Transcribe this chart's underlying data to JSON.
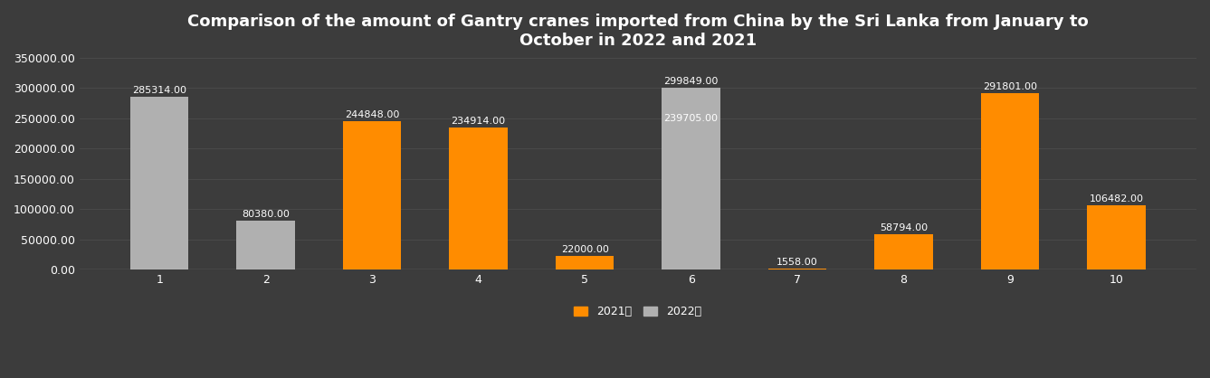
{
  "title": "Comparison of the amount of Gantry cranes imported from China by the Sri Lanka from January to\nOctober in 2022 and 2021",
  "categories": [
    "1",
    "2",
    "3",
    "4",
    "5",
    "6",
    "7",
    "8",
    "9",
    "10"
  ],
  "values_2021": [
    0,
    0,
    244848,
    234914,
    22000,
    239705,
    1558,
    58794,
    291801,
    106482
  ],
  "values_2022": [
    285314,
    80380,
    0,
    0,
    0,
    299849,
    0,
    0,
    0,
    0
  ],
  "labels_2021": [
    "",
    "",
    "244848.00",
    "234914.00",
    "22000.00",
    "239705.00",
    "1558.00",
    "58794.00",
    "291801.00",
    "106482.00"
  ],
  "labels_2022": [
    "285314.00",
    "80380.00",
    "",
    "",
    "",
    "299849.00",
    "",
    "",
    "",
    ""
  ],
  "bar_color_2021": "#FF8C00",
  "bar_color_2022": "#B0B0B0",
  "background_color": "#3C3C3C",
  "text_color": "#ffffff",
  "grid_color": "#505050",
  "ylim": [
    0,
    350000
  ],
  "yticks": [
    0,
    50000,
    100000,
    150000,
    200000,
    250000,
    300000,
    350000
  ],
  "legend_2021": "2021年",
  "legend_2022": "2022年",
  "bar_width": 0.55,
  "title_fontsize": 13,
  "tick_fontsize": 9,
  "label_fontsize": 8
}
